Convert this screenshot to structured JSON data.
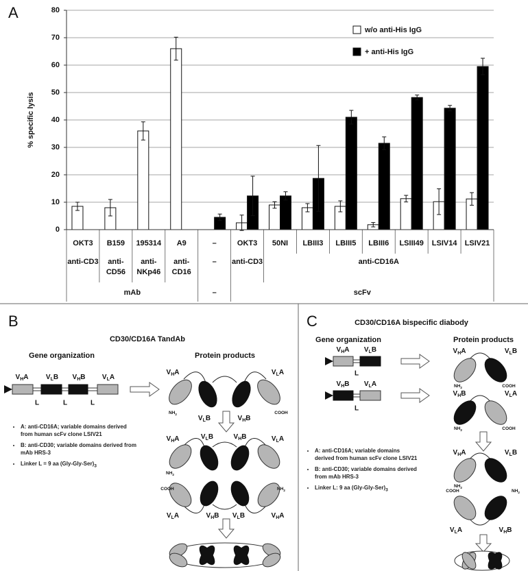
{
  "panel_labels": [
    "A",
    "B",
    "C"
  ],
  "chart_data": {
    "type": "bar",
    "ylabel": "% specific lysis",
    "categories": [
      "OKT3",
      "B159",
      "195314",
      "A9",
      "–",
      "OKT3",
      "50NI",
      "LBIII3",
      "LBIII5",
      "LBIII6",
      "LSIII49",
      "LSIV14",
      "LSIV21"
    ],
    "targets": [
      "anti-CD3",
      "anti-CD56",
      "anti-NKp46",
      "anti-CD16",
      "–",
      "anti-CD3",
      "anti-CD16A"
    ],
    "formats": [
      "mAb",
      "–",
      "scFv"
    ],
    "series": [
      {
        "name": "w/o anti-His IgG",
        "color": "#ffffff",
        "values": [
          8.5,
          8,
          36,
          66,
          null,
          2.5,
          9,
          8,
          8.5,
          1.8,
          11.3,
          10.2,
          11.2
        ],
        "errors": [
          1.5,
          3,
          3.3,
          4.2,
          null,
          2.8,
          1.2,
          1.5,
          2,
          0.8,
          1.2,
          4.7,
          2.3
        ]
      },
      {
        "name": "+ anti-His IgG",
        "color": "#000000",
        "values": [
          null,
          null,
          null,
          null,
          4.5,
          12.3,
          12.3,
          18.7,
          41,
          31.5,
          48.2,
          44.3,
          59.5
        ],
        "errors": [
          null,
          null,
          null,
          null,
          1.2,
          7.2,
          1.5,
          12,
          2.5,
          2.3,
          0.9,
          1,
          3
        ]
      }
    ],
    "ylim": [
      0,
      80
    ],
    "yticks": [
      0,
      10,
      20,
      30,
      40,
      50,
      60,
      70,
      80
    ],
    "grid": true,
    "legend": "upper right"
  },
  "domains": {
    "VHA": {
      "base": "V",
      "sub": "H",
      "chain": "A"
    },
    "VLA": {
      "base": "V",
      "sub": "L",
      "chain": "A"
    },
    "VHB": {
      "base": "V",
      "sub": "H",
      "chain": "B"
    },
    "VLB": {
      "base": "V",
      "sub": "L",
      "chain": "B"
    }
  },
  "termini": {
    "NH2": {
      "base": "NH",
      "sub": "2"
    },
    "COOH": {
      "base": "COOH"
    }
  },
  "linker": "L",
  "panel_b": {
    "title": "CD30/CD16A TandAb",
    "gene_heading": "Gene organization",
    "protein_heading": "Protein products",
    "notes": [
      {
        "text": "A: anti-CD16A; variable domains derived from human scFv clone LSIV21"
      },
      {
        "text": "B: anti-CD30; variable domains derived from mAb HRS-3"
      },
      {
        "text": "Linker L = 9 aa (Gly-Gly-Ser)",
        "sub": "3"
      }
    ]
  },
  "panel_c": {
    "title": "CD30/CD16A bispecific diabody",
    "gene_heading": "Gene organization",
    "protein_heading": "Protein products",
    "notes": [
      {
        "text": "A: anti-CD16A; variable domains derived from human scFv clone LSIV21"
      },
      {
        "text": "B: anti-CD30; variable domains derived from mAb HRS-3"
      },
      {
        "text": "Linker L: 9 aa (Gly-Gly-Ser)",
        "sub": "3"
      }
    ]
  }
}
